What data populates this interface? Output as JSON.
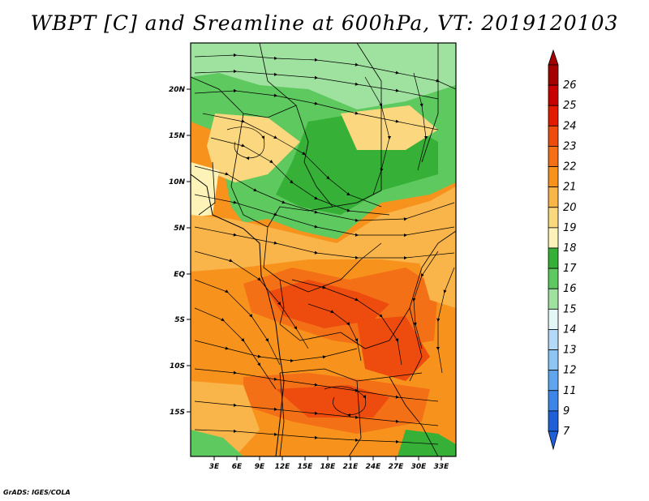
{
  "title": "WBPT [C] and Sreamline at 600hPa, VT: 2019120103",
  "footer": "GrADS: IGES/COLA",
  "map": {
    "lat_ticks": [
      "20N",
      "15N",
      "10N",
      "5N",
      "EQ",
      "5S",
      "10S",
      "15S"
    ],
    "lon_ticks": [
      "3E",
      "6E",
      "9E",
      "12E",
      "15E",
      "18E",
      "21E",
      "24E",
      "27E",
      "30E",
      "33E"
    ]
  },
  "colorbar": {
    "levels": [
      {
        "label": "26",
        "color": "#a50000"
      },
      {
        "label": "25",
        "color": "#c80000"
      },
      {
        "label": "24",
        "color": "#e31a00"
      },
      {
        "label": "23",
        "color": "#ee4b0e"
      },
      {
        "label": "22",
        "color": "#f47016"
      },
      {
        "label": "21",
        "color": "#f7921c"
      },
      {
        "label": "20",
        "color": "#f9b44a"
      },
      {
        "label": "19",
        "color": "#fbd77f"
      },
      {
        "label": "18",
        "color": "#fdf3b8"
      },
      {
        "label": "17",
        "color": "#36b036"
      },
      {
        "label": "16",
        "color": "#5ec95e"
      },
      {
        "label": "15",
        "color": "#9fe19f"
      },
      {
        "label": "14",
        "color": "#e4f7f7"
      },
      {
        "label": "13",
        "color": "#b3d9f7"
      },
      {
        "label": "12",
        "color": "#8cc4f4"
      },
      {
        "label": "11",
        "color": "#5fa6ee"
      },
      {
        "label": "9",
        "color": "#3d86e8"
      },
      {
        "label": "7",
        "color": "#1f60d9"
      }
    ],
    "bottom_cap_color": "#1f60d9"
  }
}
